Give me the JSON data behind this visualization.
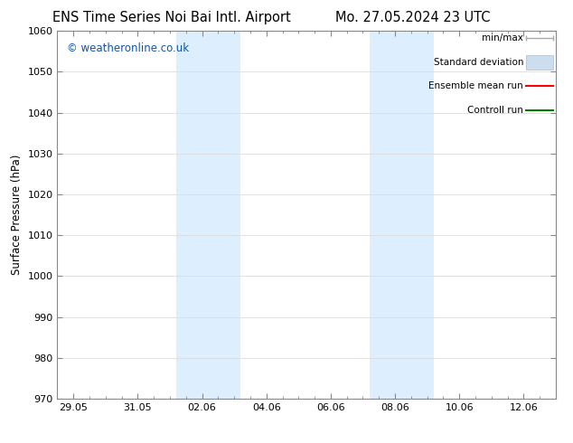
{
  "title_left": "ENS Time Series Noi Bai Intl. Airport",
  "title_right": "Mo. 27.05.2024 23 UTC",
  "ylabel": "Surface Pressure (hPa)",
  "ylim": [
    970,
    1060
  ],
  "yticks": [
    970,
    980,
    990,
    1000,
    1010,
    1020,
    1030,
    1040,
    1050,
    1060
  ],
  "xtick_labels": [
    "29.05",
    "31.05",
    "02.06",
    "04.06",
    "06.06",
    "08.06",
    "10.06",
    "12.06"
  ],
  "xtick_positions": [
    0,
    2,
    4,
    6,
    8,
    10,
    12,
    14
  ],
  "xmin": -0.5,
  "xmax": 15.0,
  "shaded_bands": [
    {
      "xmin": 3.2,
      "xmax": 5.2
    },
    {
      "xmin": 9.2,
      "xmax": 11.2
    }
  ],
  "shade_color": "#ddeeff",
  "watermark": "© weatheronline.co.uk",
  "watermark_color": "#1155aa",
  "background_color": "#ffffff",
  "grid_color": "#dddddd",
  "spine_color": "#888888",
  "title_fontsize": 10.5,
  "ylabel_fontsize": 8.5,
  "tick_fontsize": 8,
  "watermark_fontsize": 8.5,
  "legend_fontsize": 7.5
}
